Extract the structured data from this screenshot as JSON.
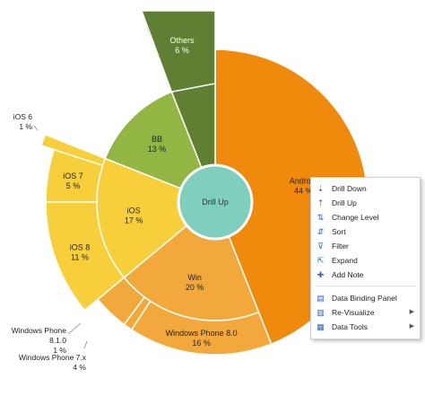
{
  "chart_data": {
    "type": "sunburst",
    "center_label": "Drill Up",
    "inner": [
      {
        "name": "Android",
        "pct": 44,
        "value_label": "44 %",
        "color": "#ef8a0c"
      },
      {
        "name": "Win",
        "pct": 20,
        "value_label": "20 %",
        "color": "#f3a83b"
      },
      {
        "name": "iOS",
        "pct": 17,
        "value_label": "17 %",
        "color": "#f7cf3a"
      },
      {
        "name": "BB",
        "pct": 13,
        "value_label": "13 %",
        "color": "#92b543"
      },
      {
        "name": "Others",
        "pct": 6,
        "value_label": "",
        "color": "#5f7f33"
      }
    ],
    "outer": [
      {
        "parent": "Win",
        "name": "Windows Phone 8.0",
        "pct": 16,
        "value_label": "16 %",
        "color": "#f3a83b"
      },
      {
        "parent": "Win",
        "name": "Windows Phone 8.1.0",
        "pct": 1,
        "value_label": "1 %",
        "color": "#f3a83b"
      },
      {
        "parent": "Win",
        "name": "Windows Phone 7.x",
        "pct": 4,
        "value_label": "4 %",
        "color": "#f3a83b"
      },
      {
        "parent": "iOS",
        "name": "iOS 8",
        "pct": 11,
        "value_label": "11 %",
        "color": "#f7cf3a"
      },
      {
        "parent": "iOS",
        "name": "iOS 7",
        "pct": 5,
        "value_label": "5 %",
        "color": "#f7cf3a"
      },
      {
        "parent": "iOS",
        "name": "iOS 6",
        "pct": 1,
        "value_label": "1 %",
        "color": "#f7cf3a"
      },
      {
        "parent": "Others",
        "name": "Others",
        "pct": 6,
        "value_label": "6 %",
        "color": "#5f7f33"
      }
    ]
  },
  "context_menu": {
    "items": [
      {
        "label": "Drill Down",
        "icon": "drill-down-icon"
      },
      {
        "label": "Drill Up",
        "icon": "drill-up-icon"
      },
      {
        "label": "Change Level",
        "icon": "change-level-icon"
      },
      {
        "label": "Sort",
        "icon": "sort-icon"
      },
      {
        "label": "Filter",
        "icon": "filter-icon"
      },
      {
        "label": "Expand",
        "icon": "expand-icon"
      },
      {
        "label": "Add Note",
        "icon": "add-note-icon"
      }
    ],
    "items2": [
      {
        "label": "Data Binding Panel",
        "icon": "data-binding-panel-icon",
        "submenu": false
      },
      {
        "label": "Re-Visualize",
        "icon": "re-visualize-icon",
        "submenu": true
      },
      {
        "label": "Data Tools",
        "icon": "data-tools-icon",
        "submenu": true
      }
    ]
  }
}
